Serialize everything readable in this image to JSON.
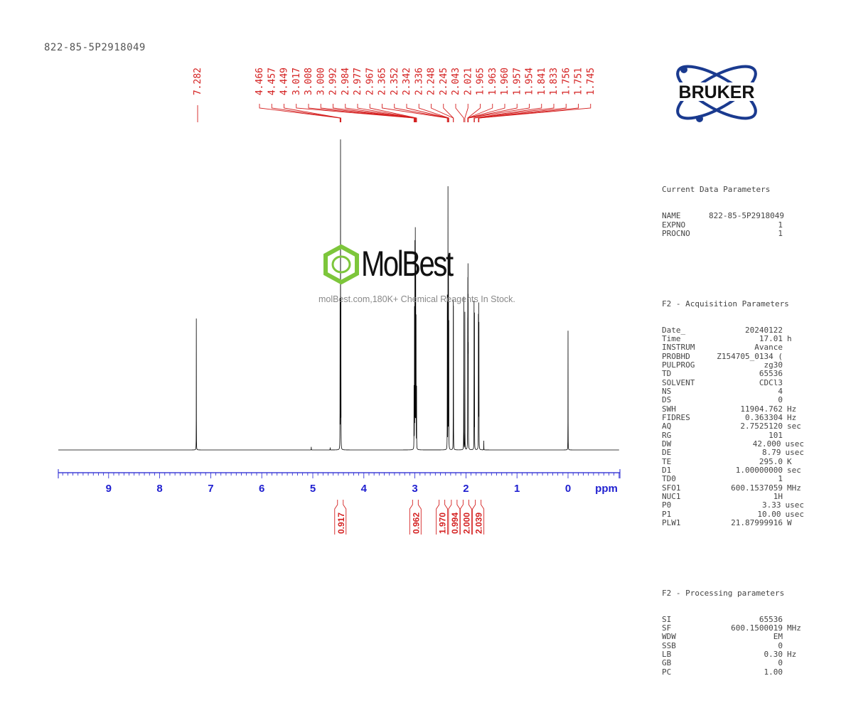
{
  "sample_title": "822-85-5P2918049",
  "logo": {
    "text": "BRUKER",
    "color": "#1a3a8f"
  },
  "watermark": {
    "name": "MolBest",
    "tagline": "molBest.com,180K+ Chemical Reagents In Stock.",
    "color": "#7dc63b"
  },
  "parameters": {
    "current": {
      "title": "Current Data Parameters",
      "rows": [
        [
          "NAME",
          "822-85-5P2918049",
          ""
        ],
        [
          "EXPNO",
          "1",
          ""
        ],
        [
          "PROCNO",
          "1",
          ""
        ]
      ]
    },
    "acquisition": {
      "title": "F2 - Acquisition Parameters",
      "rows": [
        [
          "Date_",
          "20240122",
          ""
        ],
        [
          "Time",
          "17.01",
          "h"
        ],
        [
          "INSTRUM",
          "Avance",
          ""
        ],
        [
          "PROBHD",
          "Z154705_0134 (",
          ""
        ],
        [
          "PULPROG",
          "zg30",
          ""
        ],
        [
          "TD",
          "65536",
          ""
        ],
        [
          "SOLVENT",
          "CDCl3",
          ""
        ],
        [
          "NS",
          "4",
          ""
        ],
        [
          "DS",
          "0",
          ""
        ],
        [
          "SWH",
          "11904.762",
          "Hz"
        ],
        [
          "FIDRES",
          "0.363304",
          "Hz"
        ],
        [
          "AQ",
          "2.7525120",
          "sec"
        ],
        [
          "RG",
          "101",
          ""
        ],
        [
          "DW",
          "42.000",
          "usec"
        ],
        [
          "DE",
          "8.79",
          "usec"
        ],
        [
          "TE",
          "295.0",
          "K"
        ],
        [
          "D1",
          "1.00000000",
          "sec"
        ],
        [
          "TD0",
          "1",
          ""
        ],
        [
          "SFO1",
          "600.1537059",
          "MHz"
        ],
        [
          "NUC1",
          "1H",
          ""
        ],
        [
          "P0",
          "3.33",
          "usec"
        ],
        [
          "P1",
          "10.00",
          "usec"
        ],
        [
          "PLW1",
          "21.87999916",
          "W"
        ]
      ]
    },
    "processing": {
      "title": "F2 - Processing parameters",
      "rows": [
        [
          "SI",
          "65536",
          ""
        ],
        [
          "SF",
          "600.1500019",
          "MHz"
        ],
        [
          "WDW",
          "EM",
          ""
        ],
        [
          "SSB",
          "0",
          ""
        ],
        [
          "LB",
          "0.30",
          "Hz"
        ],
        [
          "GB",
          "0",
          ""
        ],
        [
          "PC",
          "1.00",
          ""
        ]
      ]
    }
  },
  "chart_data": {
    "type": "line",
    "xlabel": "ppm",
    "xlim": [
      10,
      -1
    ],
    "x_reversed": true,
    "x_ticks": [
      "9",
      "8",
      "7",
      "6",
      "5",
      "4",
      "3",
      "2",
      "1",
      "0"
    ],
    "grid": false,
    "colors": {
      "spectrum": "#000000",
      "axis": "#1f1fd0",
      "annotation": "#d42020"
    },
    "peak_labels": [
      "7.282",
      "4.466",
      "4.457",
      "4.449",
      "3.017",
      "3.008",
      "3.000",
      "2.992",
      "2.984",
      "2.977",
      "2.967",
      "2.365",
      "2.352",
      "2.342",
      "2.336",
      "2.248",
      "2.245",
      "2.043",
      "2.021",
      "1.965",
      "1.963",
      "1.960",
      "1.957",
      "1.954",
      "1.841",
      "1.833",
      "1.756",
      "1.751",
      "1.745"
    ],
    "peaks_relative_height": [
      [
        7.282,
        0.43
      ],
      [
        4.466,
        0.48
      ],
      [
        4.457,
        1.0
      ],
      [
        4.449,
        0.48
      ],
      [
        3.017,
        0.2
      ],
      [
        3.008,
        0.45
      ],
      [
        3.0,
        0.66
      ],
      [
        2.992,
        0.7
      ],
      [
        2.984,
        0.62
      ],
      [
        2.977,
        0.42
      ],
      [
        2.967,
        0.2
      ],
      [
        2.365,
        0.5
      ],
      [
        2.352,
        0.85
      ],
      [
        2.342,
        0.6
      ],
      [
        2.336,
        0.4
      ],
      [
        2.248,
        0.44
      ],
      [
        2.245,
        0.42
      ],
      [
        2.043,
        0.5
      ],
      [
        2.021,
        0.45
      ],
      [
        1.965,
        0.3
      ],
      [
        1.963,
        0.42
      ],
      [
        1.96,
        0.49
      ],
      [
        1.957,
        0.4
      ],
      [
        1.954,
        0.28
      ],
      [
        1.841,
        0.48
      ],
      [
        1.833,
        0.44
      ],
      [
        1.756,
        0.42
      ],
      [
        1.751,
        0.45
      ],
      [
        1.745,
        0.4
      ],
      [
        5.03,
        0.01
      ],
      [
        4.66,
        0.008
      ],
      [
        1.65,
        0.03
      ],
      [
        0.0,
        0.39
      ]
    ],
    "integrals": [
      {
        "ppm": 4.46,
        "value": "0.917"
      },
      {
        "ppm": 2.99,
        "value": "0.962"
      },
      {
        "ppm": 2.47,
        "value": "1.970"
      },
      {
        "ppm": 2.23,
        "value": "0.994"
      },
      {
        "ppm": 2.0,
        "value": "2.000"
      },
      {
        "ppm": 1.76,
        "value": "2.039"
      }
    ]
  }
}
